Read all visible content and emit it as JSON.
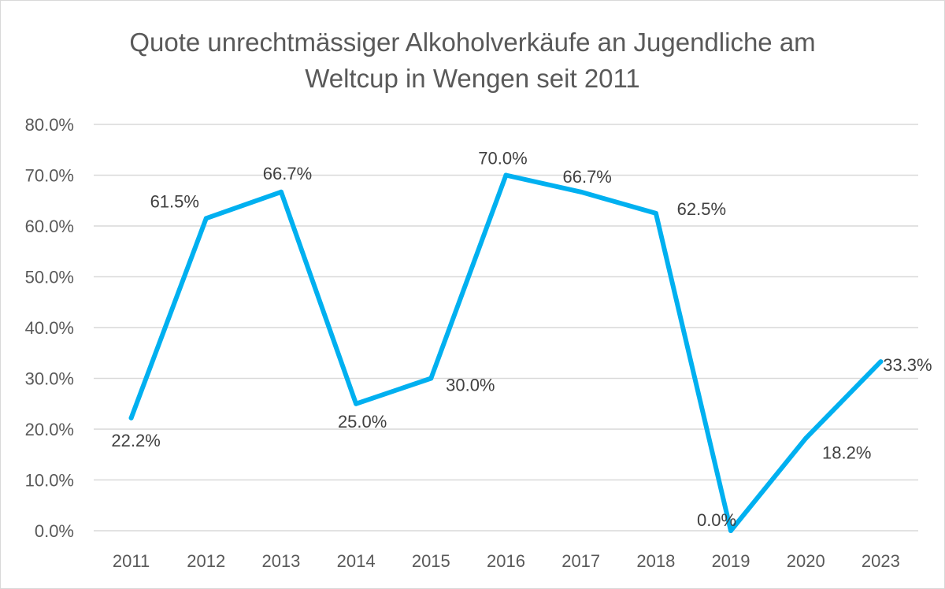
{
  "chart_data": {
    "type": "line",
    "title_lines": [
      "Quote unrechtmässiger Alkoholverkäufe an Jugendliche am",
      "Weltcup in Wengen seit 2011"
    ],
    "categories": [
      "2011",
      "2012",
      "2013",
      "2014",
      "2015",
      "2016",
      "2017",
      "2018",
      "2019",
      "2020",
      "2023"
    ],
    "series": [
      {
        "name": "Quote",
        "values": [
          22.2,
          61.5,
          66.7,
          25.0,
          30.0,
          70.0,
          66.7,
          62.5,
          0.0,
          18.2,
          33.3
        ],
        "labels": [
          "22.2%",
          "61.5%",
          "66.7%",
          "25.0%",
          "30.0%",
          "70.0%",
          "66.7%",
          "62.5%",
          "0.0%",
          "18.2%",
          "33.3%"
        ]
      }
    ],
    "y_ticks": [
      "0.0%",
      "10.0%",
      "20.0%",
      "30.0%",
      "40.0%",
      "50.0%",
      "60.0%",
      "70.0%",
      "80.0%"
    ],
    "ylim": [
      0,
      80
    ],
    "xlabel": "",
    "ylabel": "",
    "grid": true,
    "legend": "none",
    "line_color": "#00b0f0",
    "grid_color": "#d9d9d9",
    "text_color": "#595959"
  }
}
